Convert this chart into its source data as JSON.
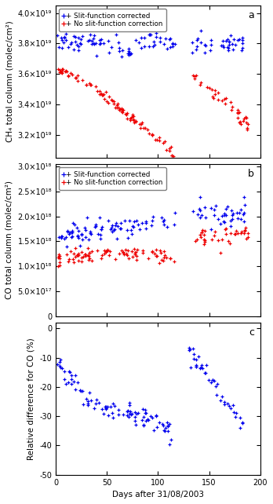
{
  "panel_a": {
    "title": "a",
    "ylabel": "CH₄ total column (molec/cm²)",
    "ylim_low": 3.05e+19,
    "ylim_high": 4.05e+19,
    "yticks": [
      3.2e+19,
      3.4e+19,
      3.6e+19,
      3.8e+19,
      4e+19
    ],
    "ytick_labels": [
      "3.2×10¹⁹",
      "3.4×10¹⁹",
      "3.6×10¹⁹",
      "3.8×10¹⁹",
      "4.0×10¹⁹"
    ]
  },
  "panel_b": {
    "title": "b",
    "ylabel": "CO total column (molec/cm²)",
    "ylim_low": 0,
    "ylim_high": 3.05e+18,
    "yticks": [
      0,
      5e+17,
      1e+18,
      1.5e+18,
      2e+18,
      2.5e+18,
      3e+18
    ],
    "ytick_labels": [
      "0",
      "5.0×10¹⁷",
      "1.0×10¹⁸",
      "1.5×10¹⁸",
      "2.0×10¹⁸",
      "2.5×10¹⁸",
      "3.0×10¹⁸"
    ]
  },
  "panel_c": {
    "title": "c",
    "ylabel": "Relative difference for CO (%)",
    "ylim_low": -50,
    "ylim_high": 2,
    "yticks": [
      -50,
      -40,
      -30,
      -20,
      -10,
      0
    ],
    "ytick_labels": [
      "-50",
      "-40",
      "-30",
      "-20",
      "-10",
      "0"
    ]
  },
  "xlim": [
    0,
    200
  ],
  "xticks": [
    0,
    50,
    100,
    150,
    200
  ],
  "xlabel": "Days after 31/08/2003",
  "blue_color": "#0000EE",
  "red_color": "#EE0000",
  "legend_blue": "+ Slit-function corrected",
  "legend_red": "+ No slit-function correction",
  "background": "#FFFFFF",
  "fig_width": 3.48,
  "fig_height": 6.42,
  "dpi": 100,
  "font_size": 7.0,
  "label_font_size": 7.5
}
